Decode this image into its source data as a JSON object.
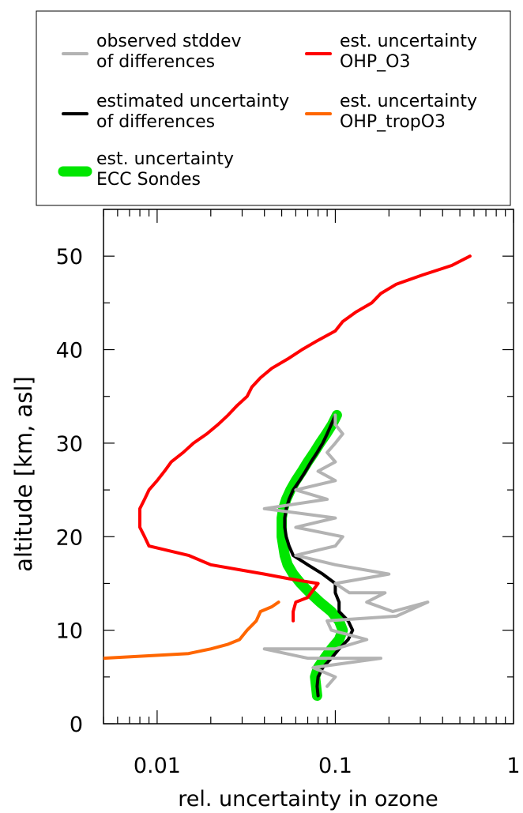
{
  "chart_data": {
    "type": "line",
    "xlabel": "rel. uncertainty in ozone",
    "ylabel": "altitude [km, asl]",
    "x_scale": "log",
    "xlim": [
      0.005,
      1
    ],
    "ylim": [
      0,
      55
    ],
    "x_ticks": [
      {
        "value": 0.01,
        "label": "0.01"
      },
      {
        "value": 0.1,
        "label": "0.1"
      },
      {
        "value": 1,
        "label": "1"
      }
    ],
    "y_ticks": [
      {
        "value": 0,
        "label": "0"
      },
      {
        "value": 10,
        "label": "10"
      },
      {
        "value": 20,
        "label": "20"
      },
      {
        "value": 30,
        "label": "30"
      },
      {
        "value": 40,
        "label": "40"
      },
      {
        "value": 50,
        "label": "50"
      }
    ],
    "legend": {
      "placement": "top",
      "entries": [
        {
          "label_line1": "observed stddev",
          "label_line2": "of differences",
          "color": "#b3b3b3",
          "series": "observed"
        },
        {
          "label_line1": "estimated uncertainty",
          "label_line2": "of differences",
          "color": "#000000",
          "series": "estimated"
        },
        {
          "label_line1": "est. uncertainty",
          "label_line2": "ECC Sondes",
          "color": "#00e600",
          "series": "ecc"
        },
        {
          "label_line1": "est. uncertainty",
          "label_line2": "OHP_O3",
          "color": "#ff0000",
          "series": "ohp_o3"
        },
        {
          "label_line1": "est. uncertainty",
          "label_line2": "OHP_tropO3",
          "color": "#ff6600",
          "series": "ohp_trop"
        }
      ]
    },
    "series": [
      {
        "id": "ecc",
        "name": "est. uncertainty ECC Sondes",
        "color": "#00e600",
        "points": [
          [
            0.079,
            3
          ],
          [
            0.078,
            4
          ],
          [
            0.077,
            5
          ],
          [
            0.08,
            6
          ],
          [
            0.087,
            7
          ],
          [
            0.095,
            8
          ],
          [
            0.105,
            9
          ],
          [
            0.11,
            10
          ],
          [
            0.105,
            11
          ],
          [
            0.095,
            12
          ],
          [
            0.082,
            13
          ],
          [
            0.072,
            14
          ],
          [
            0.064,
            15
          ],
          [
            0.058,
            16
          ],
          [
            0.054,
            17
          ],
          [
            0.052,
            18
          ],
          [
            0.051,
            19
          ],
          [
            0.05,
            20
          ],
          [
            0.05,
            21
          ],
          [
            0.05,
            22
          ],
          [
            0.051,
            23
          ],
          [
            0.053,
            24
          ],
          [
            0.056,
            25
          ],
          [
            0.06,
            26
          ],
          [
            0.065,
            27
          ],
          [
            0.07,
            28
          ],
          [
            0.076,
            29
          ],
          [
            0.082,
            30
          ],
          [
            0.089,
            31
          ],
          [
            0.096,
            32
          ],
          [
            0.102,
            33
          ]
        ]
      },
      {
        "id": "estimated",
        "name": "estimated uncertainty of differences",
        "color": "#000000",
        "points": [
          [
            0.08,
            3
          ],
          [
            0.079,
            4
          ],
          [
            0.08,
            5
          ],
          [
            0.085,
            6
          ],
          [
            0.095,
            7
          ],
          [
            0.105,
            8
          ],
          [
            0.118,
            9
          ],
          [
            0.125,
            10
          ],
          [
            0.118,
            11
          ],
          [
            0.105,
            12
          ],
          [
            0.105,
            13
          ],
          [
            0.1,
            14
          ],
          [
            0.1,
            15
          ],
          [
            0.085,
            16
          ],
          [
            0.07,
            17
          ],
          [
            0.058,
            18
          ],
          [
            0.055,
            19
          ],
          [
            0.053,
            20
          ],
          [
            0.052,
            21
          ],
          [
            0.052,
            22
          ],
          [
            0.053,
            23
          ],
          [
            0.055,
            24
          ],
          [
            0.058,
            25
          ],
          [
            0.063,
            26
          ],
          [
            0.068,
            27
          ],
          [
            0.073,
            28
          ],
          [
            0.079,
            29
          ],
          [
            0.085,
            30
          ],
          [
            0.09,
            31
          ],
          [
            0.095,
            32
          ],
          [
            0.1,
            33
          ]
        ]
      },
      {
        "id": "observed",
        "name": "observed stddev of differences",
        "color": "#b3b3b3",
        "points": [
          [
            0.09,
            4
          ],
          [
            0.1,
            5
          ],
          [
            0.075,
            6
          ],
          [
            0.18,
            7
          ],
          [
            0.07,
            7
          ],
          [
            0.04,
            8
          ],
          [
            0.1,
            8
          ],
          [
            0.15,
            9
          ],
          [
            0.095,
            10
          ],
          [
            0.09,
            11
          ],
          [
            0.22,
            11.5
          ],
          [
            0.33,
            13
          ],
          [
            0.21,
            12
          ],
          [
            0.15,
            13
          ],
          [
            0.19,
            14
          ],
          [
            0.12,
            14
          ],
          [
            0.1,
            15
          ],
          [
            0.2,
            16
          ],
          [
            0.1,
            17
          ],
          [
            0.06,
            18
          ],
          [
            0.1,
            19
          ],
          [
            0.11,
            20
          ],
          [
            0.06,
            21
          ],
          [
            0.1,
            22
          ],
          [
            0.04,
            23
          ],
          [
            0.09,
            24
          ],
          [
            0.06,
            25
          ],
          [
            0.1,
            26
          ],
          [
            0.08,
            27
          ],
          [
            0.1,
            28
          ],
          [
            0.09,
            29
          ],
          [
            0.1,
            30
          ],
          [
            0.11,
            31
          ],
          [
            0.1,
            32
          ],
          [
            0.1,
            33
          ]
        ]
      },
      {
        "id": "ohp_o3",
        "name": "est. uncertainty OHP_O3",
        "color": "#ff0000",
        "points": [
          [
            0.058,
            11
          ],
          [
            0.058,
            12
          ],
          [
            0.06,
            13
          ],
          [
            0.07,
            13.5
          ],
          [
            0.08,
            15
          ],
          [
            0.055,
            15.5
          ],
          [
            0.04,
            16
          ],
          [
            0.02,
            17
          ],
          [
            0.015,
            18
          ],
          [
            0.009,
            19
          ],
          [
            0.0085,
            20
          ],
          [
            0.008,
            21
          ],
          [
            0.008,
            22
          ],
          [
            0.008,
            23
          ],
          [
            0.0085,
            24
          ],
          [
            0.009,
            25
          ],
          [
            0.01,
            26
          ],
          [
            0.011,
            27
          ],
          [
            0.012,
            28
          ],
          [
            0.014,
            29
          ],
          [
            0.016,
            30
          ],
          [
            0.019,
            31
          ],
          [
            0.022,
            32
          ],
          [
            0.025,
            33
          ],
          [
            0.028,
            34
          ],
          [
            0.032,
            35
          ],
          [
            0.034,
            36
          ],
          [
            0.038,
            37
          ],
          [
            0.044,
            38
          ],
          [
            0.054,
            39
          ],
          [
            0.065,
            40
          ],
          [
            0.08,
            41
          ],
          [
            0.1,
            42
          ],
          [
            0.11,
            43
          ],
          [
            0.13,
            44
          ],
          [
            0.16,
            45
          ],
          [
            0.18,
            46
          ],
          [
            0.22,
            47
          ],
          [
            0.31,
            48
          ],
          [
            0.45,
            49
          ],
          [
            0.57,
            50
          ]
        ]
      },
      {
        "id": "ohp_trop",
        "name": "est. uncertainty OHP_tropO3",
        "color": "#ff6600",
        "points": [
          [
            0.005,
            7
          ],
          [
            0.015,
            7.5
          ],
          [
            0.02,
            8
          ],
          [
            0.025,
            8.5
          ],
          [
            0.029,
            9
          ],
          [
            0.032,
            10
          ],
          [
            0.036,
            11
          ],
          [
            0.038,
            12
          ],
          [
            0.044,
            12.5
          ],
          [
            0.048,
            13
          ]
        ]
      }
    ]
  }
}
